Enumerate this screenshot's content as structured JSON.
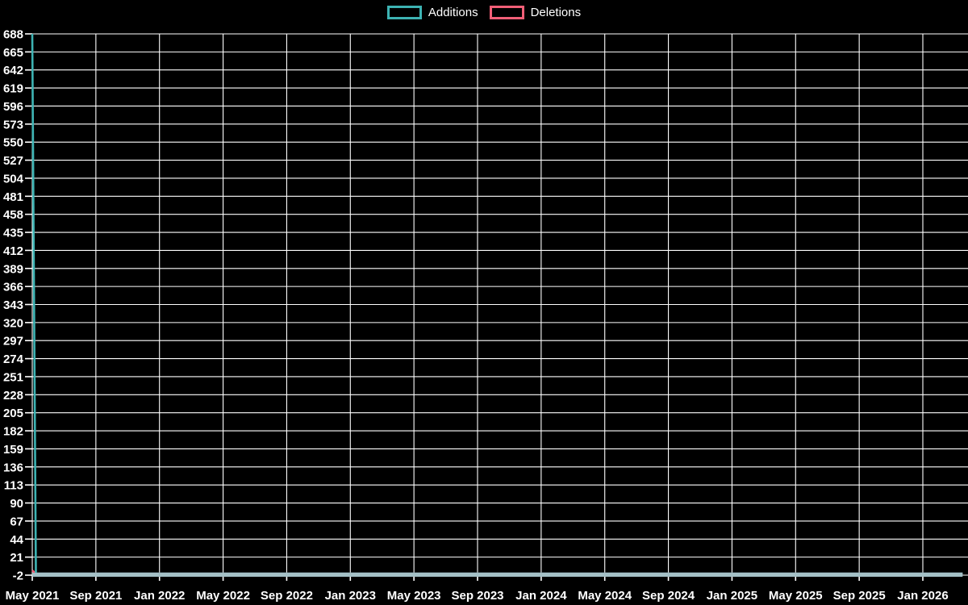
{
  "page": {
    "background_color": "#000000",
    "text_color": "#ffffff",
    "grid_color": "#ffffff"
  },
  "legend": {
    "items": [
      {
        "id": "additions",
        "label": "Additions",
        "color": "#3db3b3"
      },
      {
        "id": "deletions",
        "label": "Deletions",
        "color": "#f15f77"
      }
    ]
  },
  "chart_data": {
    "type": "line",
    "title": "",
    "xlabel": "",
    "ylabel": "",
    "grid": true,
    "legend_position": "top-center",
    "y_axis": {
      "min": -2,
      "max": 688,
      "step": 23,
      "ticks": [
        688,
        665,
        642,
        619,
        596,
        573,
        550,
        527,
        504,
        481,
        458,
        435,
        412,
        389,
        366,
        343,
        320,
        297,
        274,
        251,
        228,
        205,
        182,
        159,
        136,
        113,
        90,
        67,
        44,
        21,
        -2
      ]
    },
    "x_axis": {
      "unit": "months-since-may-2021",
      "ticks": [
        {
          "label": "May 2021",
          "month": 0
        },
        {
          "label": "Sep 2021",
          "month": 4
        },
        {
          "label": "Jan 2022",
          "month": 8
        },
        {
          "label": "May 2022",
          "month": 12
        },
        {
          "label": "Sep 2022",
          "month": 16
        },
        {
          "label": "Jan 2023",
          "month": 20
        },
        {
          "label": "May 2023",
          "month": 24
        },
        {
          "label": "Sep 2023",
          "month": 28
        },
        {
          "label": "Jan 2024",
          "month": 32
        },
        {
          "label": "May 2024",
          "month": 36
        },
        {
          "label": "Sep 2024",
          "month": 40
        },
        {
          "label": "Jan 2025",
          "month": 44
        },
        {
          "label": "May 2025",
          "month": 48
        },
        {
          "label": "Sep 2025",
          "month": 52
        },
        {
          "label": "Jan 2026",
          "month": 56
        }
      ]
    },
    "series": [
      {
        "name": "Deletions",
        "color": "#f15f77",
        "points": [
          {
            "month": 0,
            "value": 4
          },
          {
            "month": 0.23,
            "value": 0
          },
          {
            "month": 58.5,
            "value": 0
          }
        ]
      },
      {
        "name": "Additions",
        "color": "#3db3b3",
        "points": [
          {
            "month": 0,
            "value": 688
          },
          {
            "month": 0.23,
            "value": 0
          },
          {
            "month": 58.5,
            "value": 0
          }
        ]
      }
    ],
    "zero_overlap_band_color": "#a4c0c6"
  }
}
